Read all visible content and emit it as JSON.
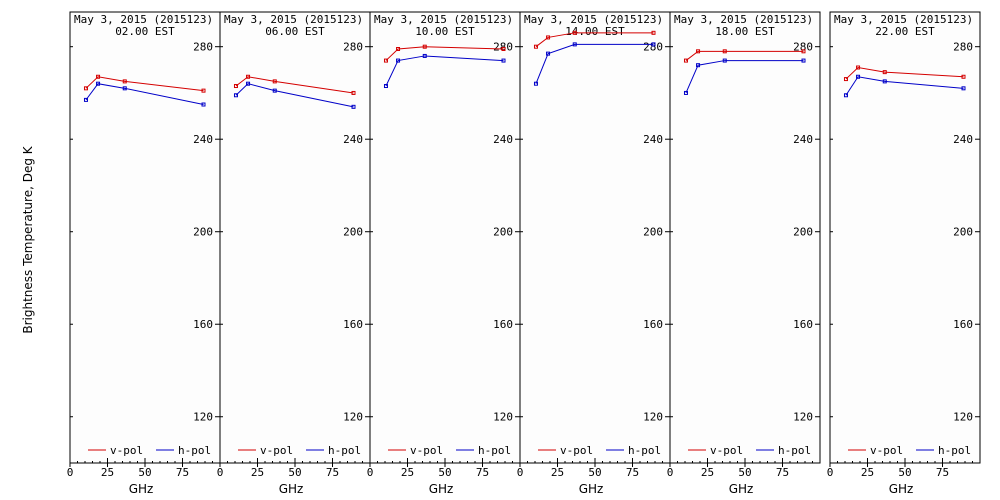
{
  "figure": {
    "ylabel": "Brightness Temperature, Deg K",
    "xlabel": "GHz",
    "colors": {
      "v_pol": "#d40000",
      "h_pol": "#0000c8",
      "background": "#fdfdfd"
    }
  },
  "chart_data": [
    {
      "type": "line",
      "title": "May  3, 2015 (2015123)",
      "subtitle": "02.00 EST",
      "xlabel": "GHz",
      "ylabel": "Brightness Temperature, Deg K",
      "xlim": [
        0,
        100
      ],
      "ylim": [
        100,
        295
      ],
      "xticks": [
        0,
        25,
        50,
        75
      ],
      "yticks": [
        120,
        160,
        200,
        240,
        280
      ],
      "x": [
        10.65,
        18.7,
        36.5,
        89.0
      ],
      "series": [
        {
          "name": "v-pol",
          "color": "#d40000",
          "values": [
            262,
            267,
            265,
            261
          ]
        },
        {
          "name": "h-pol",
          "color": "#0000c8",
          "values": [
            257,
            264,
            262,
            255
          ]
        }
      ],
      "legend": "bottom"
    },
    {
      "type": "line",
      "title": "May  3, 2015 (2015123)",
      "subtitle": "06.00 EST",
      "xlabel": "GHz",
      "xlim": [
        0,
        100
      ],
      "ylim": [
        100,
        295
      ],
      "xticks": [
        0,
        25,
        50,
        75
      ],
      "yticks": [
        120,
        160,
        200,
        240,
        280
      ],
      "x": [
        10.65,
        18.7,
        36.5,
        89.0
      ],
      "series": [
        {
          "name": "v-pol",
          "color": "#d40000",
          "values": [
            263,
            267,
            265,
            260
          ]
        },
        {
          "name": "h-pol",
          "color": "#0000c8",
          "values": [
            259,
            264,
            261,
            254
          ]
        }
      ],
      "legend": "bottom"
    },
    {
      "type": "line",
      "title": "May  3, 2015 (2015123)",
      "subtitle": "10.00 EST",
      "xlabel": "GHz",
      "xlim": [
        0,
        100
      ],
      "ylim": [
        100,
        295
      ],
      "xticks": [
        0,
        25,
        50,
        75
      ],
      "yticks": [
        120,
        160,
        200,
        240,
        280
      ],
      "x": [
        10.65,
        18.7,
        36.5,
        89.0
      ],
      "series": [
        {
          "name": "v-pol",
          "color": "#d40000",
          "values": [
            274,
            279,
            280,
            279
          ]
        },
        {
          "name": "h-pol",
          "color": "#0000c8",
          "values": [
            263,
            274,
            276,
            274
          ]
        }
      ],
      "legend": "bottom"
    },
    {
      "type": "line",
      "title": "May  3, 2015 (2015123)",
      "subtitle": "14.00 EST",
      "xlabel": "GHz",
      "xlim": [
        0,
        100
      ],
      "ylim": [
        100,
        295
      ],
      "xticks": [
        0,
        25,
        50,
        75
      ],
      "yticks": [
        120,
        160,
        200,
        240,
        280
      ],
      "x": [
        10.65,
        18.7,
        36.5,
        89.0
      ],
      "series": [
        {
          "name": "v-pol",
          "color": "#d40000",
          "values": [
            280,
            284,
            286,
            286
          ]
        },
        {
          "name": "h-pol",
          "color": "#0000c8",
          "values": [
            264,
            277,
            281,
            281
          ]
        }
      ],
      "legend": "bottom"
    },
    {
      "type": "line",
      "title": "May  3, 2015 (2015123)",
      "subtitle": "18.00 EST",
      "xlabel": "GHz",
      "xlim": [
        0,
        100
      ],
      "ylim": [
        100,
        295
      ],
      "xticks": [
        0,
        25,
        50,
        75
      ],
      "yticks": [
        120,
        160,
        200,
        240,
        280
      ],
      "x": [
        10.65,
        18.7,
        36.5,
        89.0
      ],
      "series": [
        {
          "name": "v-pol",
          "color": "#d40000",
          "values": [
            274,
            278,
            278,
            278
          ]
        },
        {
          "name": "h-pol",
          "color": "#0000c8",
          "values": [
            260,
            272,
            274,
            274
          ]
        }
      ],
      "legend": "bottom"
    },
    {
      "type": "line",
      "title": "May  3, 2015 (2015123)",
      "subtitle": "22.00 EST",
      "xlabel": "GHz",
      "xlim": [
        0,
        100
      ],
      "ylim": [
        100,
        295
      ],
      "xticks": [
        0,
        25,
        50,
        75
      ],
      "yticks": [
        120,
        160,
        200,
        240,
        280
      ],
      "x": [
        10.65,
        18.7,
        36.5,
        89.0
      ],
      "series": [
        {
          "name": "v-pol",
          "color": "#d40000",
          "values": [
            266,
            271,
            269,
            267
          ]
        },
        {
          "name": "h-pol",
          "color": "#0000c8",
          "values": [
            259,
            267,
            265,
            262
          ]
        }
      ],
      "legend": "bottom"
    }
  ]
}
